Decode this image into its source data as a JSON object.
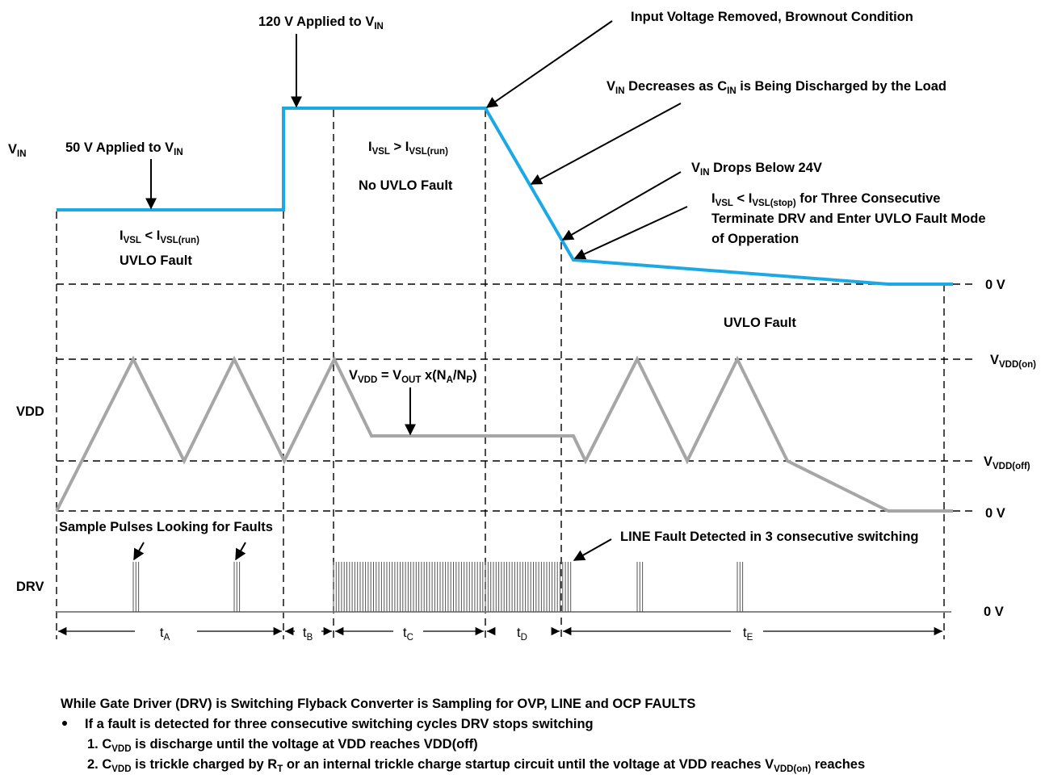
{
  "colors": {
    "vin_trace": "#1BA9E6",
    "vdd_trace": "#A6A6A6",
    "drv_trace": "#555555"
  },
  "signals": {
    "vin": {
      "main": "V",
      "sub": "IN"
    },
    "vdd": "VDD",
    "drv": "DRV"
  },
  "levels": {
    "vin_zero": "0 V",
    "vdd_on": {
      "main": "V",
      "sub": "VDD(on)"
    },
    "vdd_off": {
      "main": "V",
      "sub": "VDD(off)"
    },
    "vdd_zero": "0 V",
    "drv_zero": "0 V"
  },
  "annotations": {
    "applied_120": {
      "a": "120 V Applied to V",
      "sub": "IN"
    },
    "applied_50": {
      "a": "50 V  Applied to V",
      "sub": "IN"
    },
    "removed": "Input Voltage Removed, Brownout Condition",
    "decreases": {
      "a": "V",
      "sub1": "IN",
      "b": "  Decreases as C",
      "sub2": "IN",
      "c": " is Being Discharged by the Load"
    },
    "drops": {
      "a": "V",
      "sub": "IN",
      "b": " Drops Below 24V"
    },
    "stop_line1": {
      "a": "I",
      "sub1": "VSL",
      "b": " < I",
      "sub2": "VSL(stop)",
      "c": " for Three Consecutive"
    },
    "stop_line2": "Terminate DRV and Enter UVLO Fault Mode",
    "stop_line3": "of Opperation",
    "run_gt": {
      "a": "I",
      "sub1": "VSL",
      "b": "  > I",
      "sub2": "VSL(run)"
    },
    "no_uvlo": "No UVLO Fault",
    "run_lt": {
      "a": "I",
      "sub1": "VSL",
      "b": " < I",
      "sub2": "VSL(run)"
    },
    "uvlo_fault_left": "UVLO Fault",
    "uvlo_fault_right": "UVLO Fault",
    "vdd_eq": {
      "a": "V",
      "sub1": "VDD",
      "b": " = V",
      "sub2": "OUT",
      "c": " x(N",
      "sub3": "A",
      "d": "/N",
      "sub4": "P",
      "e": ")"
    },
    "sample_pulses": "Sample Pulses Looking for Faults",
    "line_fault": "LINE Fault Detected in 3 consecutive switching"
  },
  "intervals": [
    {
      "main": "t",
      "sub": "A"
    },
    {
      "main": "t",
      "sub": "B"
    },
    {
      "main": "t",
      "sub": "C"
    },
    {
      "main": "t",
      "sub": "D"
    },
    {
      "main": "t",
      "sub": "E"
    }
  ],
  "notes": {
    "heading": "While Gate Driver (DRV) is Switching Flyback Converter is Sampling for OVP, LINE and OCP FAULTS",
    "bullet": "If a fault is detected for three consecutive switching cycles DRV stops switching",
    "item1": {
      "a": "1. C",
      "sub": "VDD",
      "b": " is discharge until the voltage at VDD reaches VDD(off)"
    },
    "item2": {
      "a": "2. C",
      "sub1": "VDD",
      "b": " is trickle charged by R",
      "sub2": "T",
      "c": " or an internal trickle charge startup circuit until the voltage at VDD reaches V",
      "sub3": "VDD(on)",
      "d": " reaches"
    }
  }
}
